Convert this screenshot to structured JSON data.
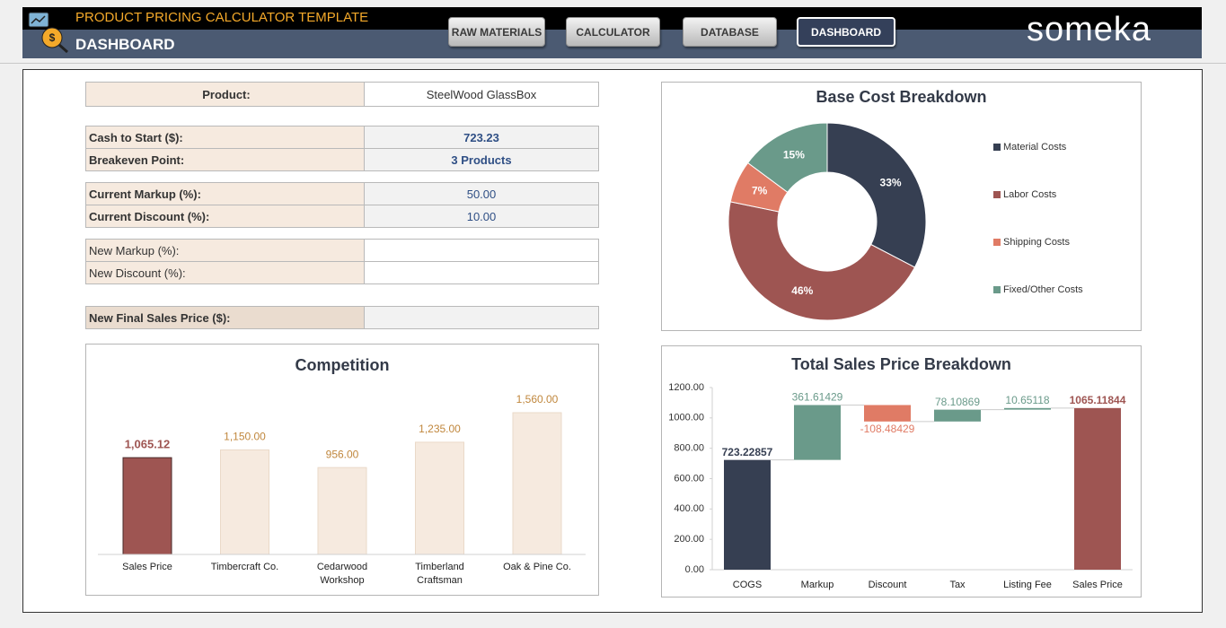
{
  "header": {
    "title": "PRODUCT PRICING CALCULATOR TEMPLATE",
    "subtitle": "DASHBOARD",
    "tabs": [
      "RAW MATERIALS",
      "CALCULATOR",
      "DATABASE",
      "DASHBOARD"
    ],
    "active_tab": 3,
    "brand": "someka"
  },
  "form": {
    "groups": [
      {
        "rows": [
          {
            "label": "Product:",
            "value": "SteelWood GlassBox"
          }
        ]
      },
      {
        "rows": [
          {
            "label": "Cash to Start ($):",
            "value": "723.23"
          },
          {
            "label": "Breakeven Point:",
            "value": "3 Products"
          }
        ]
      },
      {
        "rows": [
          {
            "label": "Current Markup (%):",
            "value": "50.00"
          },
          {
            "label": "Current Discount (%):",
            "value": "10.00"
          }
        ]
      },
      {
        "rows": [
          {
            "label": "New Markup (%):",
            "value": null
          },
          {
            "label": "New Discount (%):",
            "value": null
          }
        ]
      },
      {
        "rows": [
          {
            "label": "New Final Sales Price ($):",
            "value": null
          }
        ]
      }
    ]
  },
  "chart_data": [
    {
      "type": "pie",
      "title": "Base Cost Breakdown",
      "categories": [
        "Material Costs",
        "Labor Costs",
        "Shipping Costs",
        "Fixed/Other Costs"
      ],
      "values": [
        33,
        46,
        7,
        15
      ],
      "value_labels": [
        "33%",
        "46%",
        "7%",
        "15%"
      ],
      "colors": [
        "#363f52",
        "#9e5552",
        "#e07b65",
        "#6a9a8a"
      ],
      "legend": "right"
    },
    {
      "type": "bar",
      "title": "Competition",
      "categories": [
        "Sales Price",
        "Timbercraft Co.",
        "Cedarwood Workshop",
        "Timberland Craftsman",
        "Oak & Pine Co."
      ],
      "values": [
        1065.12,
        1150,
        956,
        1235,
        1560
      ],
      "value_labels": [
        "1,065.12",
        "1,150.00",
        "956.00",
        "1,235.00",
        "1,560.00"
      ],
      "colors": [
        "#9e5552",
        "#f6eadf",
        "#f6eadf",
        "#f6eadf",
        "#f6eadf"
      ],
      "value_label_colors": [
        "#9e5552",
        "#c0873d",
        "#c0873d",
        "#c0873d",
        "#c0873d"
      ]
    },
    {
      "type": "waterfall",
      "title": "Total Sales Price Breakdown",
      "categories": [
        "COGS",
        "Markup",
        "Discount",
        "Tax",
        "Listing Fee",
        "Sales Price"
      ],
      "values": [
        723.22857,
        361.61429,
        -108.48429,
        78.10869,
        10.65118,
        1065.11844
      ],
      "colors": [
        "#363f52",
        "#6a9a8a",
        "#e07b65",
        "#6a9a8a",
        "#6a9a8a",
        "#9e5552"
      ],
      "ylim": [
        0,
        1200
      ],
      "yticks": [
        {
          "value": 0,
          "label": "0.00"
        },
        {
          "value": 200,
          "label": "200.00"
        },
        {
          "value": 400,
          "label": "400.00"
        },
        {
          "value": 600,
          "label": "600.00"
        },
        {
          "value": 800,
          "label": "800.00"
        },
        {
          "value": 1000,
          "label": "1000.00"
        },
        {
          "value": 1200,
          "label": "1200.00"
        }
      ],
      "grid": false
    }
  ]
}
